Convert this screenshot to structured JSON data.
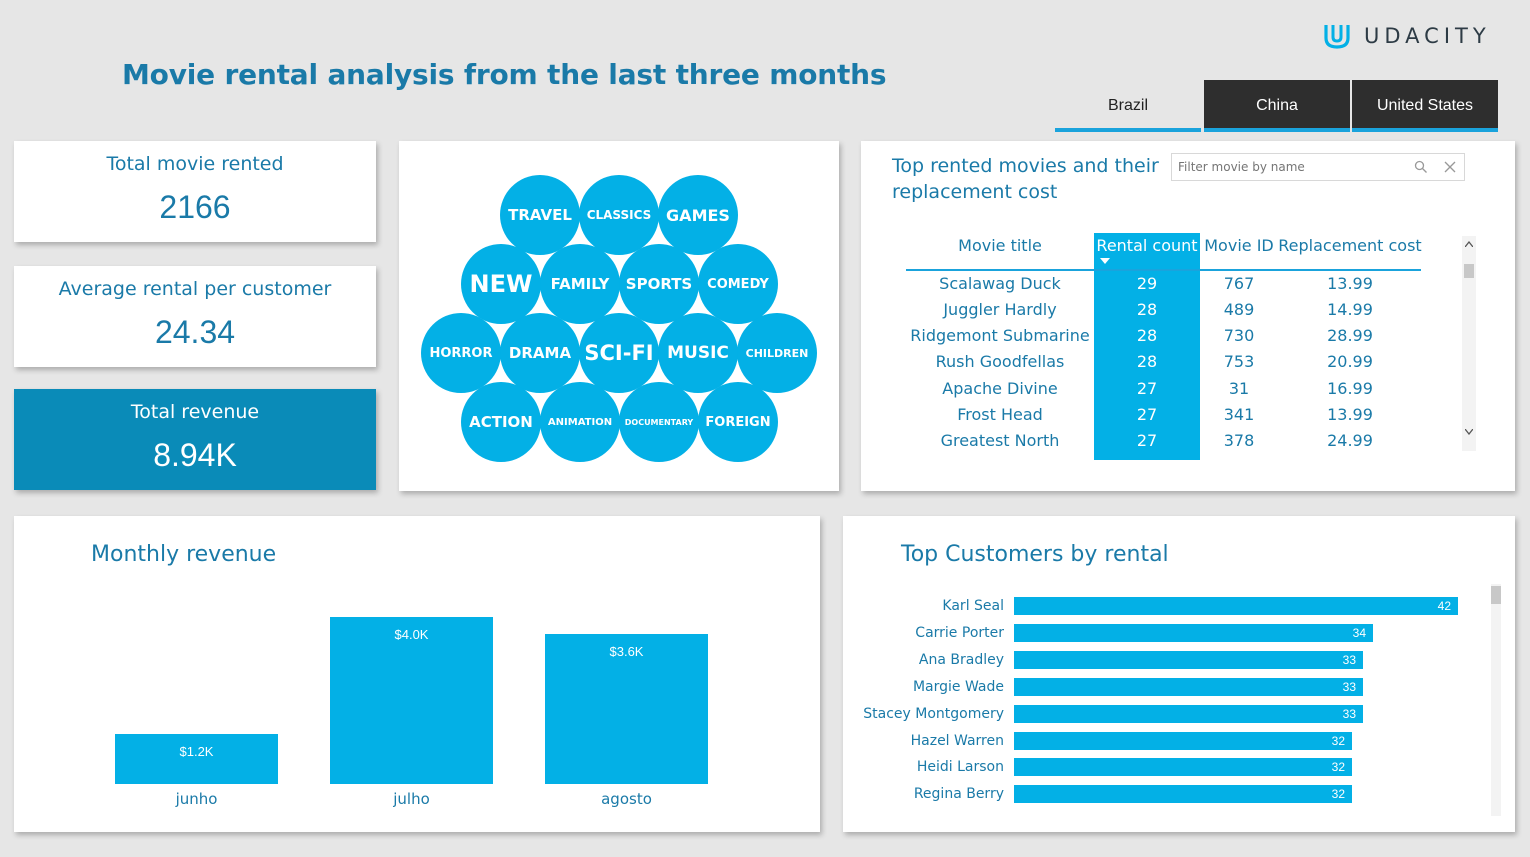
{
  "page_title": "Movie rental analysis from the last three months",
  "logo": {
    "text": "UDACITY"
  },
  "tabs": [
    {
      "label": "Brazil",
      "selected": true
    },
    {
      "label": "China",
      "selected": false
    },
    {
      "label": "United States",
      "selected": false
    }
  ],
  "kpis": {
    "total_rented": {
      "label": "Total movie rented",
      "value": "2166"
    },
    "avg_rental": {
      "label": "Average rental per customer",
      "value": "24.34"
    },
    "total_revenue": {
      "label": "Total revenue",
      "value": "8.94K"
    }
  },
  "categories": [
    "TRAVEL",
    "CLASSICS",
    "GAMES",
    "NEW",
    "FAMILY",
    "SPORTS",
    "COMEDY",
    "HORROR",
    "DRAMA",
    "SCI-FI",
    "MUSIC",
    "CHILDREN",
    "ACTION",
    "ANIMATION",
    "DOCUMENTARY",
    "FOREIGN"
  ],
  "top_movies": {
    "title_line1": "Top rented movies and their",
    "title_line2": "replacement cost",
    "filter_placeholder": "Filter movie by name",
    "columns": [
      "Movie title",
      "Rental count",
      "Movie ID",
      "Replacement cost"
    ],
    "rows": [
      [
        "Scalawag Duck",
        "29",
        "767",
        "13.99"
      ],
      [
        "Juggler Hardly",
        "28",
        "489",
        "14.99"
      ],
      [
        "Ridgemont Submarine",
        "28",
        "730",
        "28.99"
      ],
      [
        "Rush Goodfellas",
        "28",
        "753",
        "20.99"
      ],
      [
        "Apache Divine",
        "27",
        "31",
        "16.99"
      ],
      [
        "Frost Head",
        "27",
        "341",
        "13.99"
      ],
      [
        "Greatest North",
        "27",
        "378",
        "24.99"
      ]
    ]
  },
  "monthly_revenue": {
    "title": "Monthly revenue",
    "chart_data": {
      "type": "bar",
      "title": "Monthly revenue",
      "categories": [
        "junho",
        "julho",
        "agosto"
      ],
      "values": [
        1.2,
        4.0,
        3.6
      ],
      "labels": [
        "$1.2K",
        "$4.0K",
        "$3.6K"
      ],
      "ylim": [
        0,
        4.0
      ],
      "grid": false
    }
  },
  "top_customers": {
    "title": "Top Customers by rental",
    "chart_data": {
      "type": "bar",
      "orientation": "horizontal",
      "title": "Top Customers by rental",
      "categories": [
        "Karl Seal",
        "Carrie Porter",
        "Ana Bradley",
        "Margie Wade",
        "Stacey Montgomery",
        "Hazel Warren",
        "Heidi Larson",
        "Regina Berry"
      ],
      "values": [
        42,
        34,
        33,
        33,
        33,
        32,
        32,
        32
      ],
      "xlim": [
        0,
        42
      ],
      "grid": false
    }
  },
  "colors": {
    "accent": "#03b0e6",
    "title": "#1a7aa8",
    "dark_tab": "#2e2e2e",
    "revenue_card": "#0a8bb8"
  }
}
